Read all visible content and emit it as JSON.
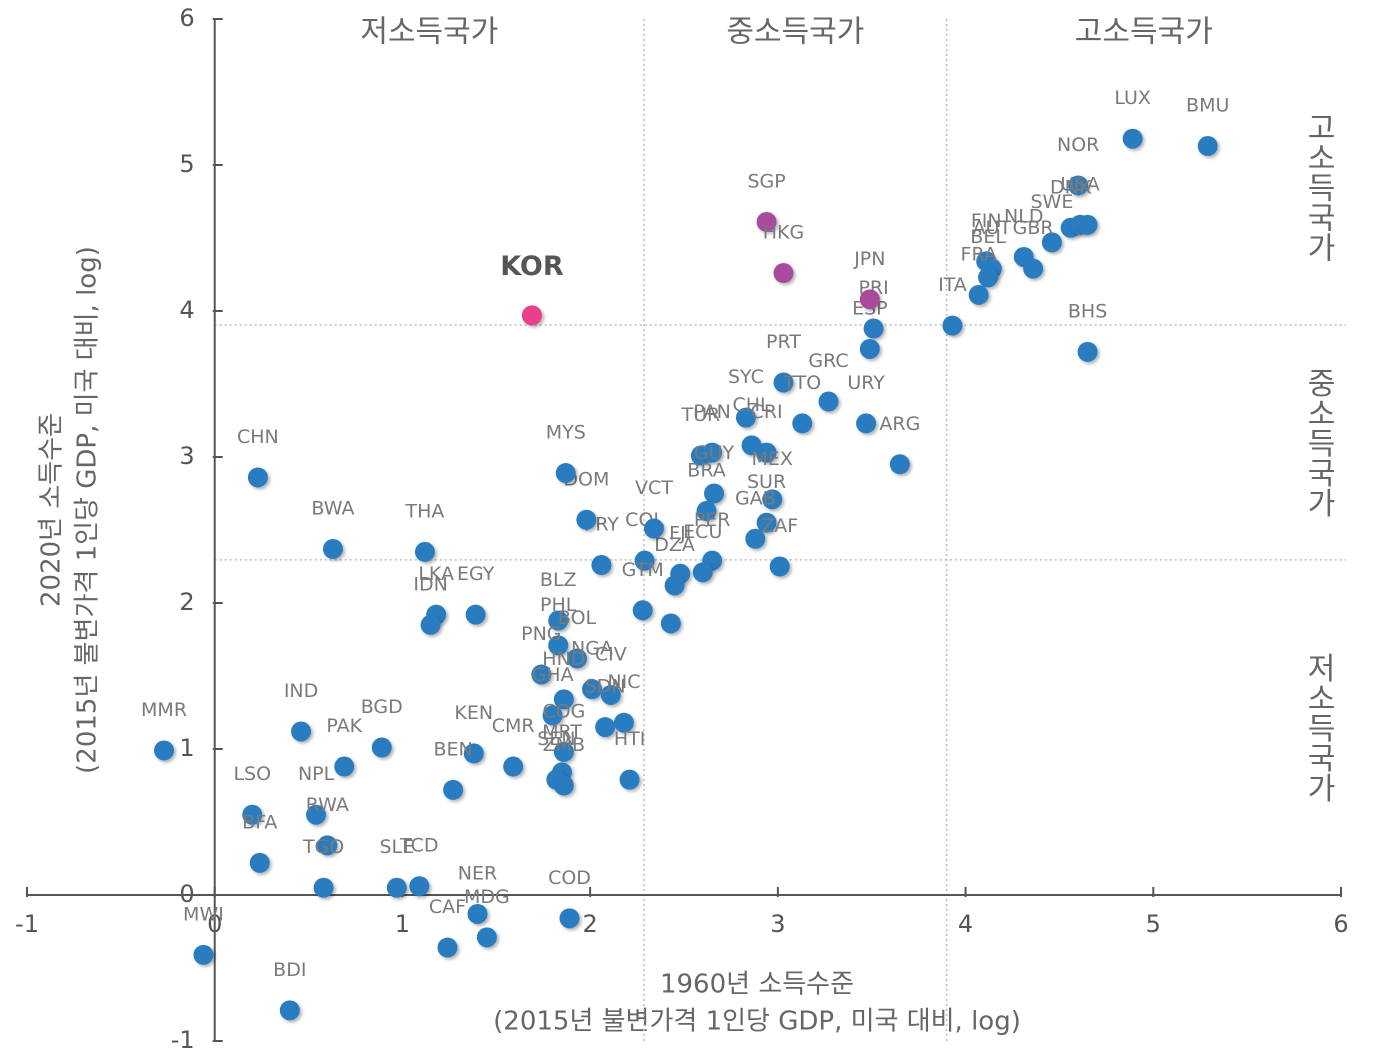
{
  "chart_data": {
    "type": "scatter",
    "xlabel": [
      "1960년 소득수준",
      "(2015년 불변가격 1인당 GDP, 미국 대비, log)"
    ],
    "ylabel": [
      "2020년 소득수준",
      "(2015년 불변가격 1인당 GDP, 미국 대비, log)"
    ],
    "xlim": [
      -1,
      6
    ],
    "ylim": [
      -1,
      6
    ],
    "xticks": [
      -1,
      0,
      1,
      2,
      3,
      4,
      5,
      6
    ],
    "yticks": [
      -1,
      0,
      1,
      2,
      3,
      4,
      5,
      6
    ],
    "xdividers": [
      2.287,
      3.899
    ],
    "ydividers": [
      2.295,
      3.904
    ],
    "top_labels": [
      "저소득국가",
      "중소득국가",
      "고소득국가"
    ],
    "right_labels": [
      "저소득국가",
      "중소득국가",
      "고소득국가"
    ],
    "series": [
      {
        "color": "#2b7bc0",
        "labels": [
          "LUX",
          "BMU",
          "NOR",
          "DNK",
          "USA",
          null,
          "SWE",
          "FIN",
          "AUT",
          "NLD",
          "GBR",
          "BEL",
          "FRA",
          "ITA",
          "PRI",
          "ESP",
          "BHS",
          "PRT",
          "GRC",
          "URY",
          "ARG",
          "TTO",
          "SYC",
          "CHL",
          "CRI",
          "TUR",
          "PAN",
          "GUY",
          "MEX",
          "BRA",
          "SUR",
          "GAB",
          "ZAF",
          "PER",
          "ECU",
          "FJI",
          "DZA",
          "COL",
          "VCT",
          "GTM",
          null,
          "PRY",
          "DOM",
          "MYS",
          "CHN",
          "BWA",
          "THA",
          "LKA",
          "IDN",
          "EGY",
          "BLZ",
          "PHL",
          "BOL",
          "PNG",
          "NGA",
          "CIV",
          "HND",
          "GHA",
          "SDN",
          "NIC",
          "COG",
          "MRT",
          "SEN",
          "ZMB",
          "HTI",
          "KEN",
          "CMR",
          "BEN",
          "BGD",
          "IND",
          "PAK",
          "MMR",
          "LSO",
          "NPL",
          "RWA",
          "BFA",
          "TGO",
          "SLE",
          "TCD",
          "NER",
          "MDG",
          "CAF",
          "COD",
          "MWI",
          "BDI"
        ],
        "x": [
          4.89,
          5.29,
          4.6,
          4.56,
          4.61,
          4.65,
          4.46,
          4.11,
          4.14,
          4.31,
          4.36,
          4.12,
          4.07,
          3.93,
          3.51,
          3.49,
          4.65,
          3.03,
          3.27,
          3.47,
          3.65,
          3.13,
          2.83,
          2.86,
          2.94,
          2.59,
          2.65,
          2.66,
          2.97,
          2.62,
          2.94,
          2.88,
          3.01,
          2.65,
          2.6,
          2.48,
          2.45,
          2.29,
          2.34,
          2.28,
          2.43,
          2.06,
          1.98,
          1.87,
          0.23,
          0.63,
          1.12,
          1.18,
          1.15,
          1.39,
          1.83,
          1.83,
          1.93,
          1.74,
          2.01,
          2.11,
          1.86,
          1.8,
          2.08,
          2.18,
          1.86,
          1.85,
          1.82,
          1.86,
          2.21,
          1.38,
          1.59,
          1.27,
          0.89,
          0.46,
          0.69,
          -0.27,
          0.2,
          0.54,
          0.6,
          0.24,
          0.58,
          0.97,
          1.09,
          1.4,
          1.45,
          1.24,
          1.89,
          -0.06,
          0.4
        ],
        "values": [
          5.18,
          5.13,
          4.86,
          4.57,
          4.59,
          4.59,
          4.47,
          4.34,
          4.29,
          4.37,
          4.29,
          4.23,
          4.11,
          3.9,
          3.88,
          3.74,
          3.72,
          3.51,
          3.38,
          3.23,
          2.95,
          3.23,
          3.27,
          3.08,
          3.03,
          3.01,
          3.03,
          2.75,
          2.71,
          2.63,
          2.55,
          2.44,
          2.25,
          2.29,
          2.21,
          2.2,
          2.12,
          2.29,
          2.51,
          1.95,
          1.86,
          2.26,
          2.57,
          2.89,
          2.86,
          2.37,
          2.35,
          1.92,
          1.85,
          1.92,
          1.88,
          1.71,
          1.62,
          1.51,
          1.41,
          1.37,
          1.34,
          1.23,
          1.15,
          1.18,
          0.98,
          0.84,
          0.79,
          0.75,
          0.79,
          0.97,
          0.88,
          0.72,
          1.01,
          1.12,
          0.88,
          0.99,
          0.55,
          0.55,
          0.34,
          0.22,
          0.05,
          0.05,
          0.06,
          -0.13,
          -0.29,
          -0.36,
          -0.16,
          -0.41,
          -0.79
        ]
      },
      {
        "color": "#a94c9c",
        "labels": [
          "SGP",
          "HKG",
          "JPN"
        ],
        "x": [
          2.94,
          3.03,
          3.49
        ],
        "values": [
          4.61,
          4.26,
          4.08
        ]
      },
      {
        "color": "#e8408a",
        "labels": [
          "KOR"
        ],
        "x": [
          1.69
        ],
        "values": [
          3.97
        ]
      }
    ]
  }
}
